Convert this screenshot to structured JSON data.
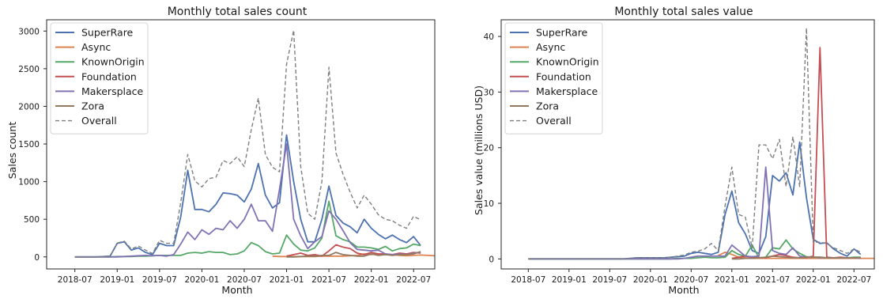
{
  "chart_data": [
    {
      "type": "line",
      "title": "Monthly total sales count",
      "xlabel": "Month",
      "ylabel": "Sales count",
      "x_ticks": [
        "2018-07",
        "2019-01",
        "2019-07",
        "2020-01",
        "2020-07",
        "2021-01",
        "2021-07",
        "2022-01",
        "2022-07"
      ],
      "y_ticks": [
        0,
        500,
        1000,
        1500,
        2000,
        2500,
        3000
      ],
      "xlim": [
        "2018-03",
        "2022-10"
      ],
      "ylim": [
        -160,
        3150
      ],
      "legend_position": "top-left",
      "grid": false,
      "series": [
        {
          "name": "SuperRare",
          "color": "#4c72b0",
          "dashed": false,
          "start": "2018-07",
          "values": [
            0,
            0,
            0,
            0,
            5,
            10,
            180,
            200,
            90,
            120,
            60,
            30,
            180,
            150,
            150,
            530,
            1150,
            630,
            630,
            600,
            700,
            850,
            840,
            820,
            730,
            900,
            1240,
            820,
            650,
            720,
            1620,
            1000,
            500,
            200,
            200,
            500,
            940,
            550,
            450,
            400,
            320,
            500,
            380,
            300,
            240,
            290,
            230,
            190,
            270,
            150
          ]
        },
        {
          "name": "Async",
          "color": "#dd8452",
          "dashed": false,
          "start": "2020-11",
          "values": [
            10,
            5,
            5,
            5,
            5,
            5,
            5,
            10,
            10,
            10,
            10,
            15,
            20,
            40,
            30,
            40,
            30,
            30,
            20,
            15,
            20,
            25,
            20,
            15
          ]
        },
        {
          "name": "KnownOrigin",
          "color": "#55a868",
          "dashed": false,
          "start": "2018-07",
          "values": [
            0,
            0,
            0,
            0,
            0,
            0,
            5,
            5,
            5,
            10,
            10,
            15,
            20,
            20,
            20,
            20,
            50,
            60,
            50,
            70,
            60,
            60,
            30,
            40,
            80,
            190,
            150,
            70,
            40,
            50,
            290,
            170,
            90,
            80,
            120,
            250,
            740,
            280,
            230,
            200,
            130,
            130,
            120,
            100,
            140,
            80,
            110,
            120,
            170,
            150
          ]
        },
        {
          "name": "Foundation",
          "color": "#c44e52",
          "dashed": false,
          "start": "2021-01",
          "values": [
            10,
            30,
            50,
            20,
            30,
            10,
            80,
            160,
            130,
            110,
            50,
            30,
            60,
            40,
            40,
            30,
            50,
            40,
            60,
            50
          ]
        },
        {
          "name": "Makersplace",
          "color": "#8172b3",
          "dashed": false,
          "start": "2018-07",
          "values": [
            0,
            0,
            0,
            0,
            0,
            0,
            0,
            5,
            10,
            15,
            20,
            15,
            20,
            10,
            30,
            170,
            330,
            230,
            360,
            300,
            380,
            360,
            480,
            380,
            500,
            700,
            480,
            480,
            340,
            900,
            1500,
            500,
            280,
            110,
            200,
            270,
            610,
            500,
            350,
            190,
            100,
            90,
            80,
            90,
            40,
            30,
            40,
            30,
            50,
            60
          ]
        },
        {
          "name": "Zora",
          "color": "#937860",
          "dashed": false,
          "start": "2021-01",
          "values": [
            0,
            0,
            5,
            10,
            10,
            20,
            20,
            60,
            30,
            20,
            10,
            10,
            40,
            20,
            30,
            20,
            30,
            30,
            40,
            70
          ]
        },
        {
          "name": "Overall",
          "color": "#7f7f7f",
          "dashed": true,
          "start": "2018-07",
          "values": [
            0,
            0,
            0,
            0,
            5,
            10,
            185,
            210,
            105,
            145,
            90,
            45,
            220,
            180,
            180,
            720,
            1360,
            1010,
            930,
            1040,
            1060,
            1280,
            1240,
            1330,
            1200,
            1690,
            2110,
            1360,
            1190,
            1130,
            2560,
            3010,
            1200,
            580,
            500,
            1000,
            2520,
            1380,
            1100,
            860,
            650,
            820,
            700,
            560,
            500,
            480,
            420,
            380,
            540,
            490
          ]
        }
      ]
    },
    {
      "type": "line",
      "title": "Monthly total sales value",
      "xlabel": "Month",
      "ylabel": "Sales value (millions USD)",
      "x_ticks": [
        "2018-07",
        "2019-01",
        "2019-07",
        "2020-01",
        "2020-07",
        "2021-01",
        "2021-07",
        "2022-01",
        "2022-07"
      ],
      "y_ticks": [
        0,
        10,
        20,
        30,
        40
      ],
      "xlim": [
        "2018-03",
        "2022-10"
      ],
      "ylim": [
        -1.8,
        43
      ],
      "legend_position": "top-left",
      "grid": false,
      "series": [
        {
          "name": "SuperRare",
          "color": "#4c72b0",
          "dashed": false,
          "start": "2018-07",
          "values": [
            0,
            0,
            0,
            0,
            0,
            0,
            0,
            0,
            0,
            0,
            0,
            0,
            0,
            0,
            0,
            0.1,
            0.2,
            0.2,
            0.2,
            0.2,
            0.2,
            0.3,
            0.4,
            0.5,
            1.0,
            1.2,
            1.0,
            0.8,
            1.2,
            8.0,
            12.2,
            6.5,
            4.5,
            1.5,
            1.0,
            4.0,
            15.0,
            14.0,
            15.5,
            11.5,
            21.0,
            11.0,
            3.5,
            2.8,
            2.9,
            1.8,
            1.0,
            0.5,
            1.8,
            0.8
          ]
        },
        {
          "name": "Async",
          "color": "#dd8452",
          "dashed": false,
          "start": "2020-11",
          "values": [
            0.6,
            1.2,
            0.8,
            0.3,
            0.2,
            0.1,
            0.1,
            0.1,
            0.1,
            0.1,
            0.1,
            0.1,
            0.1,
            0.1,
            0.1,
            0.1,
            0.1,
            0.1,
            0.1,
            0.1,
            0.1,
            0.1,
            0.1,
            0.1
          ]
        },
        {
          "name": "KnownOrigin",
          "color": "#55a868",
          "dashed": false,
          "start": "2018-07",
          "values": [
            0,
            0,
            0,
            0,
            0,
            0,
            0,
            0,
            0,
            0,
            0,
            0,
            0,
            0,
            0,
            0,
            0,
            0,
            0,
            0,
            0,
            0,
            0.1,
            0.1,
            0.1,
            0.2,
            0.3,
            0.2,
            0.2,
            0.3,
            1.5,
            0.8,
            0.5,
            2.5,
            0.2,
            0.3,
            2.0,
            1.8,
            3.4,
            1.8,
            1.0,
            0.4,
            0.3,
            0.3,
            0.2,
            0.2,
            0.2,
            0.2,
            0.3,
            0.3
          ]
        },
        {
          "name": "Foundation",
          "color": "#c44e52",
          "dashed": false,
          "start": "2021-01",
          "values": [
            0.1,
            0.3,
            0.5,
            0.3,
            0.2,
            0.2,
            0.5,
            0.8,
            0.6,
            0.3,
            0.2,
            0.2,
            0.5,
            38.0,
            0.3,
            0.2,
            0.3,
            0.2,
            0.2,
            0.2
          ]
        },
        {
          "name": "Makersplace",
          "color": "#8172b3",
          "dashed": false,
          "start": "2018-07",
          "values": [
            0,
            0,
            0,
            0,
            0,
            0,
            0,
            0,
            0,
            0,
            0,
            0,
            0,
            0,
            0,
            0,
            0,
            0,
            0,
            0,
            0,
            0,
            0,
            0.1,
            0.3,
            0.5,
            0.5,
            0.5,
            0.5,
            0.5,
            2.5,
            1.5,
            0.5,
            0.4,
            0.5,
            16.5,
            1.5,
            1.0,
            0.8,
            2.0,
            0.5,
            0.3,
            0.3,
            0.2,
            0.2,
            0.2,
            0.2,
            0.2,
            0.2,
            0.1
          ]
        },
        {
          "name": "Zora",
          "color": "#937860",
          "dashed": false,
          "start": "2021-01",
          "values": [
            0,
            0,
            0.1,
            0.1,
            0.2,
            0.3,
            0.5,
            0.4,
            0.3,
            0.2,
            0.2,
            0.3,
            0.3,
            0.3,
            0.2,
            0.2,
            0.2,
            0.2,
            0.2,
            0.2
          ]
        },
        {
          "name": "Overall",
          "color": "#7f7f7f",
          "dashed": true,
          "start": "2018-07",
          "values": [
            0,
            0,
            0,
            0,
            0,
            0,
            0,
            0,
            0,
            0,
            0,
            0,
            0,
            0,
            0,
            0.1,
            0.2,
            0.2,
            0.2,
            0.2,
            0.2,
            0.3,
            0.5,
            0.7,
            1.2,
            1.4,
            1.8,
            2.8,
            1.5,
            9.5,
            16.5,
            8.0,
            7.5,
            2.0,
            20.5,
            20.5,
            18.0,
            21.5,
            13.0,
            22.0,
            13.0,
            41.5,
            3.0,
            3.0,
            2.8,
            2.0,
            1.5,
            1.0,
            1.8,
            1.2
          ]
        }
      ]
    }
  ]
}
